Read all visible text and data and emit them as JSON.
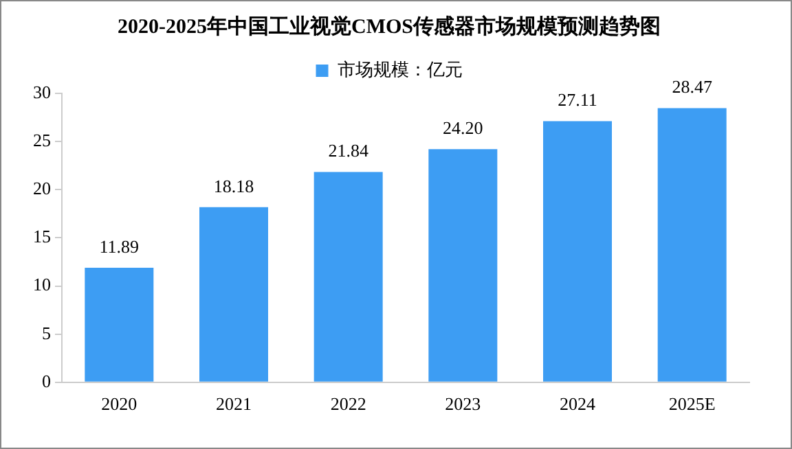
{
  "chart_data": {
    "type": "bar",
    "title": "2020-2025年中国工业视觉CMOS传感器市场规模预测趋势图",
    "categories": [
      "2020",
      "2021",
      "2022",
      "2023",
      "2024",
      "2025E"
    ],
    "series": [
      {
        "name": "市场规模：亿元",
        "color": "#3d9df3",
        "values": [
          11.89,
          18.18,
          21.84,
          24.2,
          27.11,
          28.47
        ],
        "value_labels": [
          "11.89",
          "18.18",
          "21.84",
          "24.20",
          "27.11",
          "28.47"
        ]
      }
    ],
    "ylim": [
      0,
      30
    ],
    "yticks": [
      0,
      5,
      10,
      15,
      20,
      25,
      30
    ],
    "grid": false,
    "legend": "top"
  }
}
